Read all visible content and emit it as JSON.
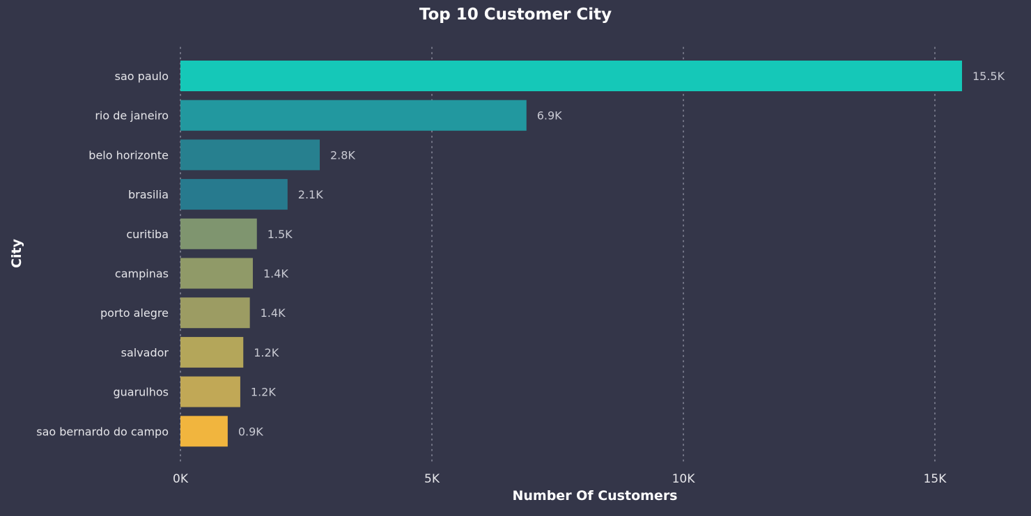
{
  "chart_data": {
    "type": "bar",
    "orientation": "horizontal",
    "title": "Top 10 Customer City",
    "xlabel": "Number Of Customers",
    "ylabel": "City",
    "categories": [
      "sao paulo",
      "rio de janeiro",
      "belo horizonte",
      "brasilia",
      "curitiba",
      "campinas",
      "porto alegre",
      "salvador",
      "guarulhos",
      "sao bernardo do campo"
    ],
    "values": [
      15540,
      6880,
      2770,
      2130,
      1520,
      1440,
      1380,
      1250,
      1190,
      940
    ],
    "value_labels": [
      "15.5K",
      "6.9K",
      "2.8K",
      "2.1K",
      "1.5K",
      "1.4K",
      "1.4K",
      "1.2K",
      "1.2K",
      "0.9K"
    ],
    "bar_colors": [
      "#15c8b8",
      "#22989f",
      "#27808f",
      "#277a8e",
      "#7f956f",
      "#909a68",
      "#9c9c63",
      "#b4a65a",
      "#c1a856",
      "#f1b53e"
    ],
    "xlim": [
      0,
      16500
    ],
    "xticks": [
      0,
      5000,
      10000,
      15000
    ],
    "xtick_labels": [
      "0K",
      "5K",
      "10K",
      "15K"
    ],
    "grid": "vertical-dotted",
    "legend": "none"
  },
  "colors": {
    "background": "#343649",
    "text": "#ffffff",
    "gridline": "#8a8c9c"
  }
}
